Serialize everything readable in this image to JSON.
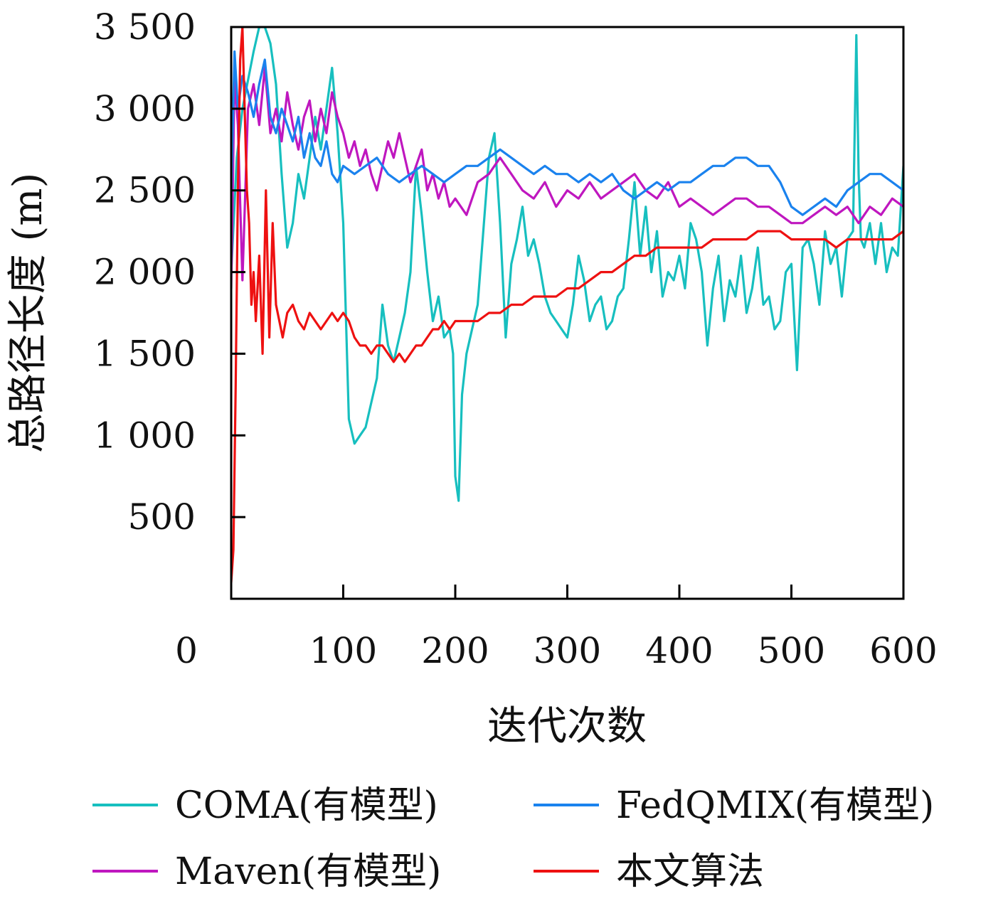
{
  "chart_data": {
    "type": "line",
    "xlabel": "迭代次数",
    "ylabel": "总路径长度 (m)",
    "xlim": [
      0,
      600
    ],
    "ylim": [
      0,
      3500
    ],
    "x_ticks": [
      0,
      100,
      200,
      300,
      400,
      500,
      600
    ],
    "x_tick_labels": [
      "0",
      "100",
      "200",
      "300",
      "400",
      "500",
      "600"
    ],
    "y_ticks": [
      500,
      1000,
      1500,
      2000,
      2500,
      3000,
      3500
    ],
    "y_tick_labels": [
      "500",
      "1 000",
      "1 500",
      "2 000",
      "2 500",
      "3 000",
      "3 500"
    ],
    "grid": false,
    "legend_position": "bottom",
    "legend_columns": 2,
    "series": [
      {
        "name": "COMA(有模型)",
        "color": "#17bfbf",
        "x": [
          0,
          5,
          10,
          20,
          25,
          30,
          35,
          40,
          45,
          50,
          55,
          60,
          65,
          70,
          75,
          80,
          85,
          90,
          95,
          100,
          105,
          110,
          115,
          120,
          125,
          130,
          135,
          140,
          145,
          150,
          155,
          160,
          165,
          170,
          175,
          180,
          185,
          190,
          195,
          198,
          200,
          203,
          206,
          210,
          215,
          220,
          225,
          230,
          235,
          240,
          245,
          250,
          255,
          260,
          265,
          270,
          275,
          280,
          285,
          290,
          295,
          300,
          305,
          310,
          315,
          320,
          325,
          330,
          335,
          340,
          345,
          350,
          355,
          360,
          365,
          370,
          375,
          380,
          385,
          390,
          395,
          400,
          405,
          410,
          415,
          420,
          425,
          430,
          435,
          440,
          445,
          450,
          455,
          460,
          465,
          470,
          475,
          480,
          485,
          490,
          495,
          500,
          505,
          510,
          515,
          520,
          525,
          530,
          535,
          540,
          545,
          550,
          555,
          558,
          560,
          562,
          565,
          570,
          575,
          580,
          585,
          590,
          595,
          600
        ],
        "values": [
          2000,
          2700,
          3000,
          3350,
          3500,
          3500,
          3400,
          3150,
          2600,
          2150,
          2300,
          2600,
          2450,
          2700,
          2950,
          2750,
          3000,
          3250,
          2850,
          2300,
          1100,
          950,
          1000,
          1050,
          1200,
          1350,
          1800,
          1550,
          1450,
          1600,
          1750,
          2000,
          2650,
          2350,
          2000,
          1700,
          1850,
          1600,
          1650,
          1500,
          750,
          600,
          1250,
          1500,
          1650,
          1800,
          2250,
          2700,
          2850,
          2300,
          1600,
          2050,
          2200,
          2400,
          2100,
          2200,
          2050,
          1850,
          1750,
          1700,
          1650,
          1600,
          1800,
          2100,
          1950,
          1700,
          1800,
          1850,
          1650,
          1700,
          1850,
          1900,
          2200,
          2550,
          2100,
          2400,
          2000,
          2250,
          1850,
          2000,
          1950,
          2100,
          1900,
          2300,
          2200,
          2000,
          1550,
          1900,
          2100,
          1700,
          1950,
          1850,
          2100,
          1750,
          1900,
          2150,
          1800,
          1850,
          1650,
          1700,
          2000,
          2050,
          1400,
          2150,
          2200,
          2050,
          1800,
          2250,
          2050,
          2150,
          1850,
          2200,
          2250,
          3450,
          2600,
          2200,
          2150,
          2300,
          2050,
          2300,
          2000,
          2150,
          2100,
          2650
        ]
      },
      {
        "name": "FedQMIX(有模型)",
        "color": "#1a82ee",
        "x": [
          0,
          3,
          6,
          10,
          15,
          20,
          25,
          30,
          35,
          40,
          45,
          50,
          55,
          60,
          65,
          70,
          75,
          80,
          85,
          90,
          95,
          100,
          110,
          120,
          130,
          140,
          150,
          160,
          170,
          180,
          190,
          200,
          210,
          220,
          230,
          240,
          250,
          260,
          270,
          280,
          290,
          300,
          310,
          320,
          330,
          340,
          350,
          360,
          370,
          380,
          390,
          400,
          410,
          420,
          430,
          440,
          450,
          460,
          470,
          480,
          490,
          500,
          510,
          520,
          530,
          540,
          550,
          560,
          570,
          580,
          590,
          600
        ],
        "values": [
          2500,
          3350,
          3000,
          3200,
          3100,
          2950,
          3150,
          3300,
          2950,
          2850,
          3000,
          2900,
          2800,
          2950,
          2700,
          2850,
          2700,
          2650,
          2800,
          2600,
          2550,
          2650,
          2600,
          2650,
          2700,
          2600,
          2550,
          2600,
          2650,
          2600,
          2550,
          2600,
          2650,
          2650,
          2700,
          2750,
          2700,
          2650,
          2600,
          2650,
          2600,
          2600,
          2550,
          2600,
          2550,
          2600,
          2500,
          2450,
          2500,
          2550,
          2500,
          2550,
          2550,
          2600,
          2650,
          2650,
          2700,
          2700,
          2650,
          2650,
          2550,
          2400,
          2350,
          2400,
          2450,
          2400,
          2500,
          2550,
          2600,
          2600,
          2550,
          2500
        ]
      },
      {
        "name": "Maven(有模型)",
        "color": "#bf17bf",
        "x": [
          0,
          3,
          6,
          10,
          15,
          20,
          25,
          30,
          35,
          40,
          45,
          50,
          55,
          60,
          65,
          70,
          75,
          80,
          85,
          90,
          95,
          100,
          105,
          110,
          115,
          120,
          125,
          130,
          135,
          140,
          145,
          150,
          155,
          160,
          165,
          170,
          175,
          180,
          185,
          190,
          195,
          200,
          210,
          220,
          230,
          240,
          250,
          260,
          270,
          280,
          290,
          300,
          310,
          320,
          330,
          340,
          350,
          360,
          370,
          380,
          390,
          400,
          410,
          420,
          430,
          440,
          450,
          460,
          470,
          480,
          490,
          500,
          510,
          520,
          530,
          540,
          550,
          560,
          570,
          580,
          590,
          600
        ],
        "values": [
          1900,
          3200,
          2900,
          1950,
          3000,
          3150,
          2900,
          3250,
          2850,
          3000,
          2800,
          3100,
          2900,
          2750,
          2950,
          3050,
          2800,
          3000,
          2850,
          3100,
          2950,
          2850,
          2700,
          2800,
          2650,
          2750,
          2600,
          2500,
          2650,
          2800,
          2700,
          2850,
          2700,
          2550,
          2650,
          2750,
          2500,
          2600,
          2450,
          2550,
          2400,
          2450,
          2350,
          2550,
          2600,
          2700,
          2600,
          2500,
          2450,
          2550,
          2400,
          2500,
          2450,
          2550,
          2450,
          2500,
          2550,
          2600,
          2500,
          2450,
          2550,
          2400,
          2450,
          2400,
          2350,
          2400,
          2450,
          2450,
          2400,
          2400,
          2350,
          2300,
          2300,
          2350,
          2400,
          2350,
          2400,
          2300,
          2400,
          2350,
          2450,
          2400
        ]
      },
      {
        "name": "本文算法",
        "color": "#ee1111",
        "x": [
          0,
          2,
          4,
          6,
          8,
          10,
          12,
          14,
          16,
          18,
          20,
          22,
          25,
          28,
          31,
          34,
          37,
          40,
          43,
          46,
          50,
          55,
          60,
          65,
          70,
          75,
          80,
          85,
          90,
          95,
          100,
          105,
          110,
          115,
          120,
          125,
          130,
          135,
          140,
          145,
          150,
          155,
          160,
          165,
          170,
          175,
          180,
          185,
          190,
          195,
          200,
          210,
          220,
          230,
          240,
          250,
          260,
          270,
          280,
          290,
          300,
          310,
          320,
          330,
          340,
          350,
          360,
          370,
          380,
          390,
          400,
          410,
          420,
          430,
          440,
          450,
          460,
          470,
          480,
          490,
          500,
          510,
          520,
          530,
          540,
          550,
          560,
          570,
          580,
          590,
          600
        ],
        "values": [
          100,
          300,
          1300,
          2500,
          3300,
          3500,
          3000,
          2500,
          2300,
          1800,
          2000,
          1700,
          2100,
          1500,
          2500,
          1600,
          2300,
          1800,
          1700,
          1600,
          1750,
          1800,
          1700,
          1650,
          1750,
          1700,
          1650,
          1700,
          1750,
          1700,
          1750,
          1700,
          1600,
          1550,
          1550,
          1500,
          1550,
          1550,
          1500,
          1450,
          1500,
          1450,
          1500,
          1550,
          1550,
          1600,
          1650,
          1650,
          1700,
          1650,
          1700,
          1700,
          1700,
          1750,
          1750,
          1800,
          1800,
          1850,
          1850,
          1850,
          1900,
          1900,
          1950,
          2000,
          2000,
          2050,
          2100,
          2100,
          2150,
          2150,
          2150,
          2150,
          2150,
          2200,
          2200,
          2200,
          2200,
          2250,
          2250,
          2250,
          2200,
          2200,
          2200,
          2200,
          2150,
          2200,
          2200,
          2200,
          2200,
          2200,
          2250
        ]
      }
    ]
  }
}
